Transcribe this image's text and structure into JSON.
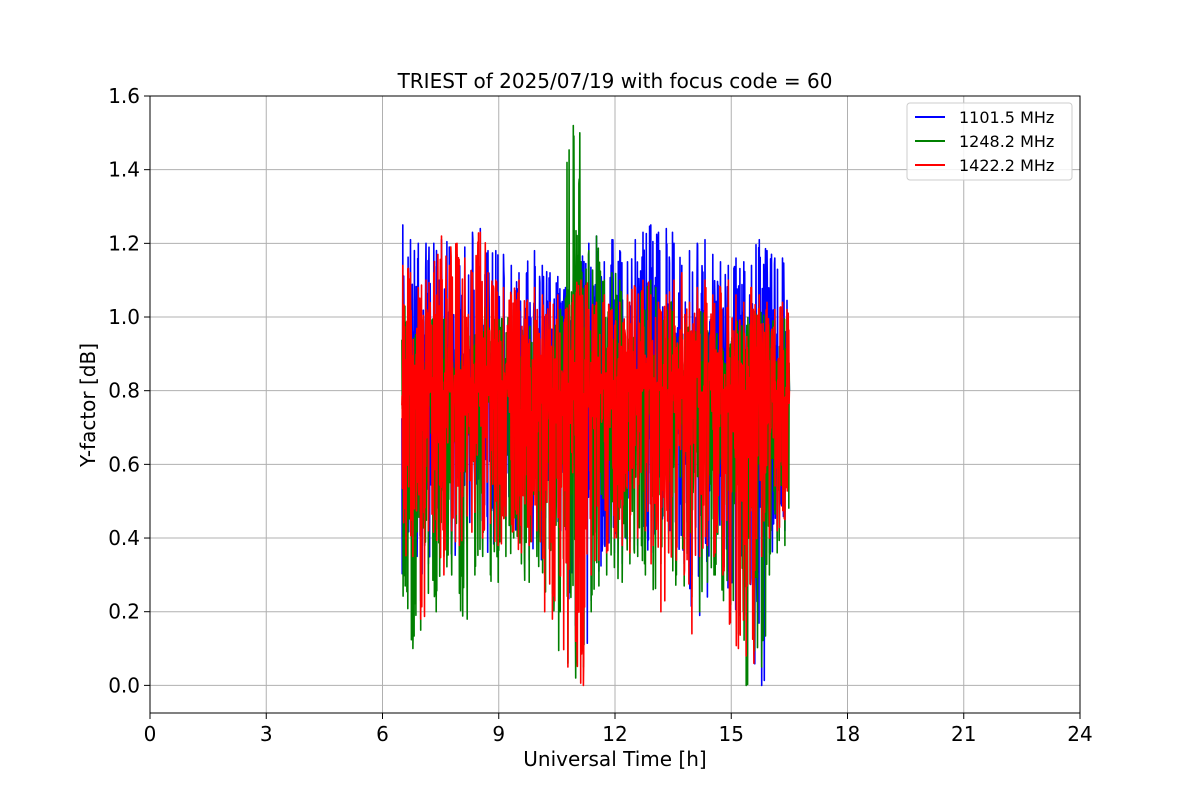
{
  "chart_data": {
    "type": "line",
    "title": "TRIEST of 2025/07/19 with focus code = 60",
    "xlabel": "Universal Time [h]",
    "ylabel": "Y-factor [dB]",
    "xlim": [
      0,
      24
    ],
    "ylim": [
      -0.075,
      1.6
    ],
    "xticks": [
      0,
      3,
      6,
      9,
      12,
      15,
      18,
      21,
      24
    ],
    "xtick_labels": [
      "0",
      "3",
      "6",
      "9",
      "12",
      "15",
      "18",
      "21",
      "24"
    ],
    "yticks": [
      0.0,
      0.2,
      0.4,
      0.6,
      0.8,
      1.0,
      1.2,
      1.4,
      1.6
    ],
    "ytick_labels": [
      "0.0",
      "0.2",
      "0.4",
      "0.6",
      "0.8",
      "1.0",
      "1.2",
      "1.4",
      "1.6"
    ],
    "grid": true,
    "legend_position": "top-right",
    "x_range": [
      6.5,
      16.5
    ],
    "series": [
      {
        "name": "1101.5 MHz",
        "color": "#0000ff",
        "x": [
          6.5,
          6.7,
          6.9,
          7.1,
          7.3,
          7.5,
          7.7,
          7.9,
          8.1,
          8.3,
          8.5,
          8.7,
          8.9,
          9.1,
          9.3,
          9.5,
          9.7,
          9.9,
          10.1,
          10.3,
          10.5,
          10.7,
          10.9,
          11.1,
          11.3,
          11.5,
          11.7,
          11.9,
          12.1,
          12.3,
          12.5,
          12.7,
          12.9,
          13.1,
          13.3,
          13.5,
          13.7,
          13.9,
          14.1,
          14.3,
          14.5,
          14.7,
          14.9,
          15.1,
          15.3,
          15.5,
          15.7,
          15.9,
          16.1,
          16.3,
          16.5
        ],
        "max": [
          1.25,
          1.21,
          1.2,
          1.2,
          1.2,
          1.21,
          1.19,
          1.17,
          1.19,
          1.23,
          1.24,
          1.18,
          1.18,
          1.17,
          1.14,
          1.12,
          1.12,
          1.18,
          1.14,
          1.12,
          1.11,
          1.08,
          1.12,
          1.15,
          1.2,
          1.22,
          1.15,
          1.21,
          1.18,
          1.15,
          1.21,
          1.23,
          1.25,
          1.23,
          1.24,
          1.2,
          1.14,
          1.18,
          1.2,
          1.21,
          1.17,
          1.15,
          1.14,
          1.16,
          1.15,
          1.14,
          1.21,
          1.18,
          1.16,
          1.16,
          1.15
        ],
        "min": [
          0.45,
          0.3,
          0.23,
          0.33,
          0.42,
          0.46,
          0.39,
          0.34,
          0.42,
          0.45,
          0.47,
          0.39,
          0.36,
          0.45,
          0.42,
          0.38,
          0.34,
          0.4,
          0.37,
          0.31,
          0.32,
          0.28,
          0.18,
          0.08,
          0.23,
          0.31,
          0.38,
          0.36,
          0.33,
          0.39,
          0.38,
          0.4,
          0.36,
          0.42,
          0.41,
          0.38,
          0.33,
          0.3,
          0.19,
          0.24,
          0.36,
          0.37,
          0.32,
          0.26,
          0.19,
          0.2,
          0.0,
          0.36,
          0.4,
          0.42,
          0.45
        ]
      },
      {
        "name": "1248.2 MHz",
        "color": "#008000",
        "x": [
          6.5,
          6.7,
          6.9,
          7.1,
          7.3,
          7.5,
          7.7,
          7.9,
          8.1,
          8.3,
          8.5,
          8.7,
          8.9,
          9.1,
          9.3,
          9.5,
          9.7,
          9.9,
          10.1,
          10.3,
          10.5,
          10.7,
          10.9,
          11.1,
          11.3,
          11.5,
          11.7,
          11.9,
          12.1,
          12.3,
          12.5,
          12.7,
          12.9,
          13.1,
          13.3,
          13.5,
          13.7,
          13.9,
          14.1,
          14.3,
          14.5,
          14.7,
          14.9,
          15.1,
          15.3,
          15.5,
          15.7,
          15.9,
          16.1,
          16.3,
          16.5
        ],
        "max": [
          1.06,
          1.04,
          1.05,
          1.02,
          1.0,
          1.02,
          1.04,
          1.01,
          1.03,
          1.04,
          1.05,
          1.0,
          0.98,
          1.01,
          1.02,
          0.98,
          0.97,
          1.02,
          0.99,
          0.98,
          0.97,
          1.05,
          1.52,
          1.15,
          1.18,
          1.22,
          1.1,
          1.12,
          1.1,
          1.05,
          1.02,
          1.08,
          1.1,
          1.03,
          1.02,
          1.05,
          1.0,
          0.98,
          1.0,
          1.02,
          1.0,
          0.98,
          0.96,
          0.98,
          1.0,
          0.98,
          1.02,
          0.97,
          0.99,
          1.0,
          0.98
        ],
        "min": [
          0.27,
          0.1,
          0.15,
          0.25,
          0.2,
          0.35,
          0.3,
          0.25,
          0.18,
          0.3,
          0.35,
          0.3,
          0.28,
          0.35,
          0.4,
          0.33,
          0.28,
          0.35,
          0.3,
          0.25,
          0.2,
          0.06,
          0.02,
          0.05,
          0.2,
          0.27,
          0.3,
          0.32,
          0.28,
          0.33,
          0.35,
          0.3,
          0.26,
          0.33,
          0.36,
          0.3,
          0.27,
          0.24,
          0.2,
          0.28,
          0.3,
          0.27,
          0.22,
          0.14,
          0.0,
          0.12,
          0.05,
          0.3,
          0.36,
          0.38,
          0.42
        ]
      },
      {
        "name": "1422.2 MHz",
        "color": "#ff0000",
        "x": [
          6.5,
          6.7,
          6.9,
          7.1,
          7.3,
          7.5,
          7.7,
          7.9,
          8.1,
          8.3,
          8.5,
          8.7,
          8.9,
          9.1,
          9.3,
          9.5,
          9.7,
          9.9,
          10.1,
          10.3,
          10.5,
          10.7,
          10.9,
          11.1,
          11.3,
          11.5,
          11.7,
          11.9,
          12.1,
          12.3,
          12.5,
          12.7,
          12.9,
          13.1,
          13.3,
          13.5,
          13.7,
          13.9,
          14.1,
          14.3,
          14.5,
          14.7,
          14.9,
          15.1,
          15.3,
          15.5,
          15.7,
          15.9,
          16.1,
          16.3,
          16.5
        ],
        "max": [
          1.14,
          1.12,
          1.08,
          1.1,
          1.12,
          1.22,
          1.14,
          1.2,
          1.16,
          1.12,
          1.23,
          1.12,
          1.1,
          1.08,
          1.06,
          1.1,
          1.04,
          1.08,
          1.06,
          1.04,
          1.06,
          1.02,
          1.06,
          1.1,
          1.02,
          1.04,
          1.06,
          1.02,
          1.04,
          1.06,
          1.08,
          1.1,
          1.06,
          1.04,
          1.06,
          1.1,
          1.12,
          1.04,
          1.08,
          1.1,
          1.06,
          1.08,
          1.1,
          1.06,
          1.04,
          1.08,
          1.06,
          1.04,
          1.02,
          1.04,
          1.06
        ],
        "min": [
          0.48,
          0.35,
          0.18,
          0.42,
          0.45,
          0.3,
          0.42,
          0.38,
          0.46,
          0.47,
          0.4,
          0.44,
          0.38,
          0.46,
          0.42,
          0.36,
          0.38,
          0.42,
          0.2,
          0.18,
          0.3,
          0.05,
          0.12,
          0.0,
          0.3,
          0.34,
          0.36,
          0.4,
          0.38,
          0.36,
          0.4,
          0.42,
          0.38,
          0.2,
          0.36,
          0.34,
          0.3,
          0.14,
          0.35,
          0.38,
          0.36,
          0.3,
          0.28,
          0.1,
          0.08,
          0.06,
          0.35,
          0.4,
          0.42,
          0.45,
          0.5
        ]
      }
    ]
  }
}
